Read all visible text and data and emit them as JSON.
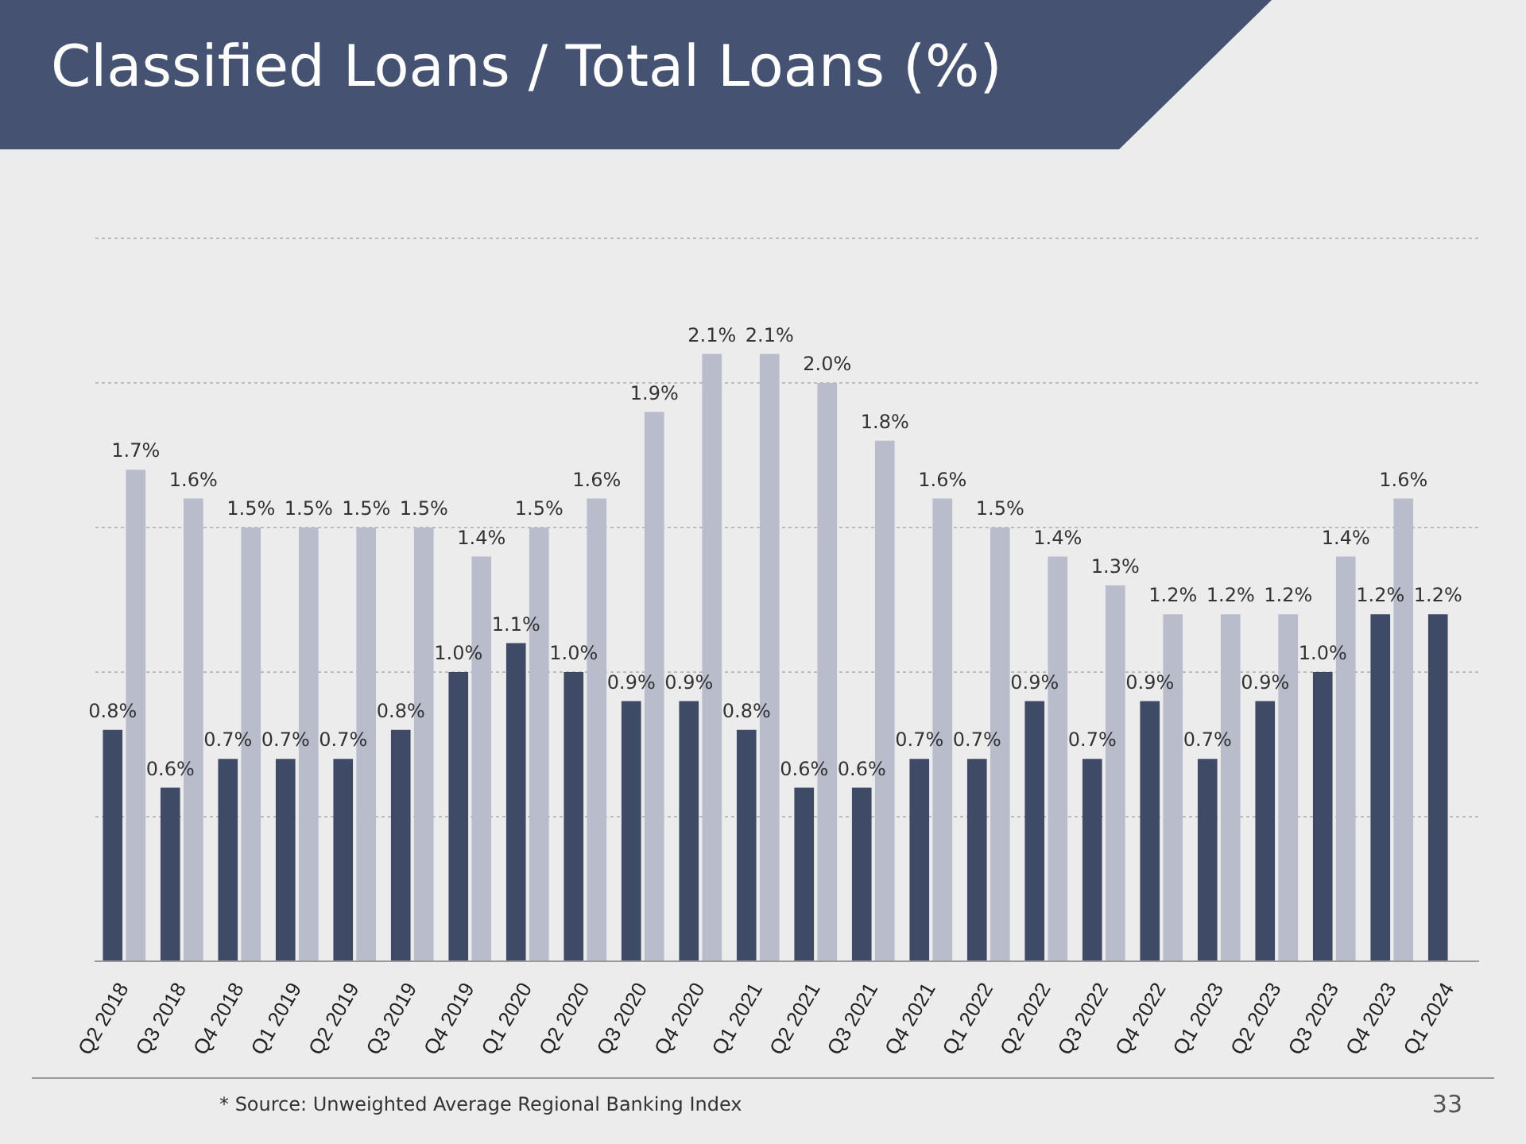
{
  "chart_data": {
    "type": "bar",
    "title": "Classified Loans / Total Loans (%)",
    "categories": [
      "Q2 2018",
      "Q3 2018",
      "Q4 2018",
      "Q1 2019",
      "Q2 2019",
      "Q3 2019",
      "Q4 2019",
      "Q1 2020",
      "Q2 2020",
      "Q3 2020",
      "Q4 2020",
      "Q1 2021",
      "Q2 2021",
      "Q3 2021",
      "Q4 2021",
      "Q1 2022",
      "Q2 2022",
      "Q3 2022",
      "Q4 2022",
      "Q1 2023",
      "Q2 2023",
      "Q3 2023",
      "Q4 2023",
      "Q1 2024"
    ],
    "series": [
      {
        "color": "#3f4a66",
        "values": [
          0.8,
          0.6,
          0.7,
          0.7,
          0.7,
          0.8,
          1.0,
          1.1,
          1.0,
          0.9,
          0.9,
          0.8,
          0.6,
          0.6,
          0.7,
          0.7,
          0.9,
          0.7,
          0.9,
          0.7,
          0.9,
          1.0,
          1.2,
          1.2
        ],
        "value_labels": [
          "0.8%",
          "0.6%",
          "0.7%",
          "0.7%",
          "0.7%",
          "0.8%",
          "1.0%",
          "1.1%",
          "1.0%",
          "0.9%",
          "0.9%",
          "0.8%",
          "0.6%",
          "0.6%",
          "0.7%",
          "0.7%",
          "0.9%",
          "0.7%",
          "0.9%",
          "0.7%",
          "0.9%",
          "1.0%",
          "1.2%",
          "1.2%"
        ]
      },
      {
        "color": "#b8bccb",
        "values": [
          1.7,
          1.6,
          1.5,
          1.5,
          1.5,
          1.5,
          1.4,
          1.5,
          1.6,
          1.9,
          2.1,
          2.1,
          2.0,
          1.8,
          1.6,
          1.5,
          1.4,
          1.3,
          1.2,
          1.2,
          1.2,
          1.4,
          1.6,
          null
        ],
        "value_labels": [
          "1.7%",
          "1.6%",
          "1.5%",
          "1.5%",
          "1.5%",
          "1.5%",
          "1.4%",
          "1.5%",
          "1.6%",
          "1.9%",
          "2.1%",
          "2.1%",
          "2.0%",
          "1.8%",
          "1.6%",
          "1.5%",
          "1.4%",
          "1.3%",
          "1.2%",
          "1.2%",
          "1.2%",
          "1.4%",
          "1.6%",
          null
        ]
      }
    ],
    "tick_labels": "x",
    "grid": "y",
    "annotations": [
      "* Source: Unweighted Average Regional Banking Index",
      "33"
    ]
  }
}
